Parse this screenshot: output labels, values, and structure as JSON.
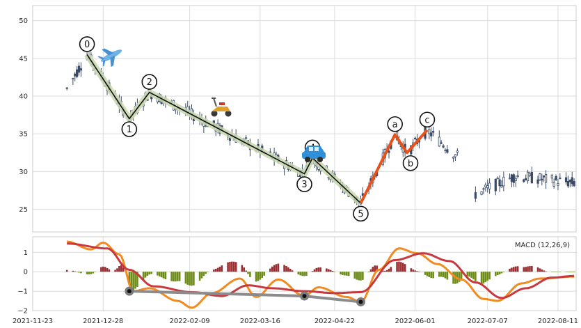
{
  "chart_data": {
    "type": "candlestick-elliott-wave",
    "price_panel": {
      "ylim": [
        22,
        52
      ],
      "yticks": [
        25,
        30,
        35,
        40,
        45,
        50
      ],
      "grid": true,
      "candle_color": "#3a4a66",
      "impulse_labels": [
        "0",
        "1",
        "2",
        "3",
        "4",
        "5"
      ],
      "impulse_points": [
        {
          "x": "2021-12-20",
          "y": 45.5
        },
        {
          "x": "2022-01-10",
          "y": 37.0
        },
        {
          "x": "2022-01-20",
          "y": 40.5
        },
        {
          "x": "2022-04-07",
          "y": 29.7
        },
        {
          "x": "2022-04-11",
          "y": 31.8
        },
        {
          "x": "2022-05-05",
          "y": 25.8
        }
      ],
      "corrective_labels": [
        "a",
        "b",
        "c"
      ],
      "corrective_points": [
        {
          "x": "2022-05-05",
          "y": 25.8
        },
        {
          "x": "2022-05-22",
          "y": 34.9
        },
        {
          "x": "2022-05-28",
          "y": 32.5
        },
        {
          "x": "2022-06-07",
          "y": 35.5
        }
      ],
      "impulse_color": "#111111",
      "impulse_band_color": "#c9d8b0",
      "corrective_color": "#e8521a",
      "icons": [
        "airplane-icon",
        "scooter-icon",
        "car-icon"
      ]
    },
    "macd_panel": {
      "legend": "MACD (12,26,9)",
      "legend_position": "top-right",
      "ylim": [
        -2,
        1.8
      ],
      "yticks": [
        -2,
        -1,
        0,
        1
      ],
      "macd_color": "#f28a1f",
      "signal_color": "#c8393f",
      "hist_positive_color": "#9b2d30",
      "hist_negative_color": "#6e8c1a",
      "divergence_color": "#8c8c8c",
      "divergence_points": [
        {
          "x": "2022-01-10",
          "y": -1.0
        },
        {
          "x": "2022-04-07",
          "y": -1.25
        },
        {
          "x": "2022-05-05",
          "y": -1.55
        }
      ]
    },
    "x_axis": {
      "xlim": [
        "2021-11-23",
        "2022-08-20"
      ],
      "tick_labels": [
        "2021-11-23",
        "2021-12-28",
        "2022-02-09",
        "2022-03-16",
        "2022-04-22",
        "2022-06-01",
        "2022-07-07",
        "2022-08-11"
      ]
    }
  }
}
